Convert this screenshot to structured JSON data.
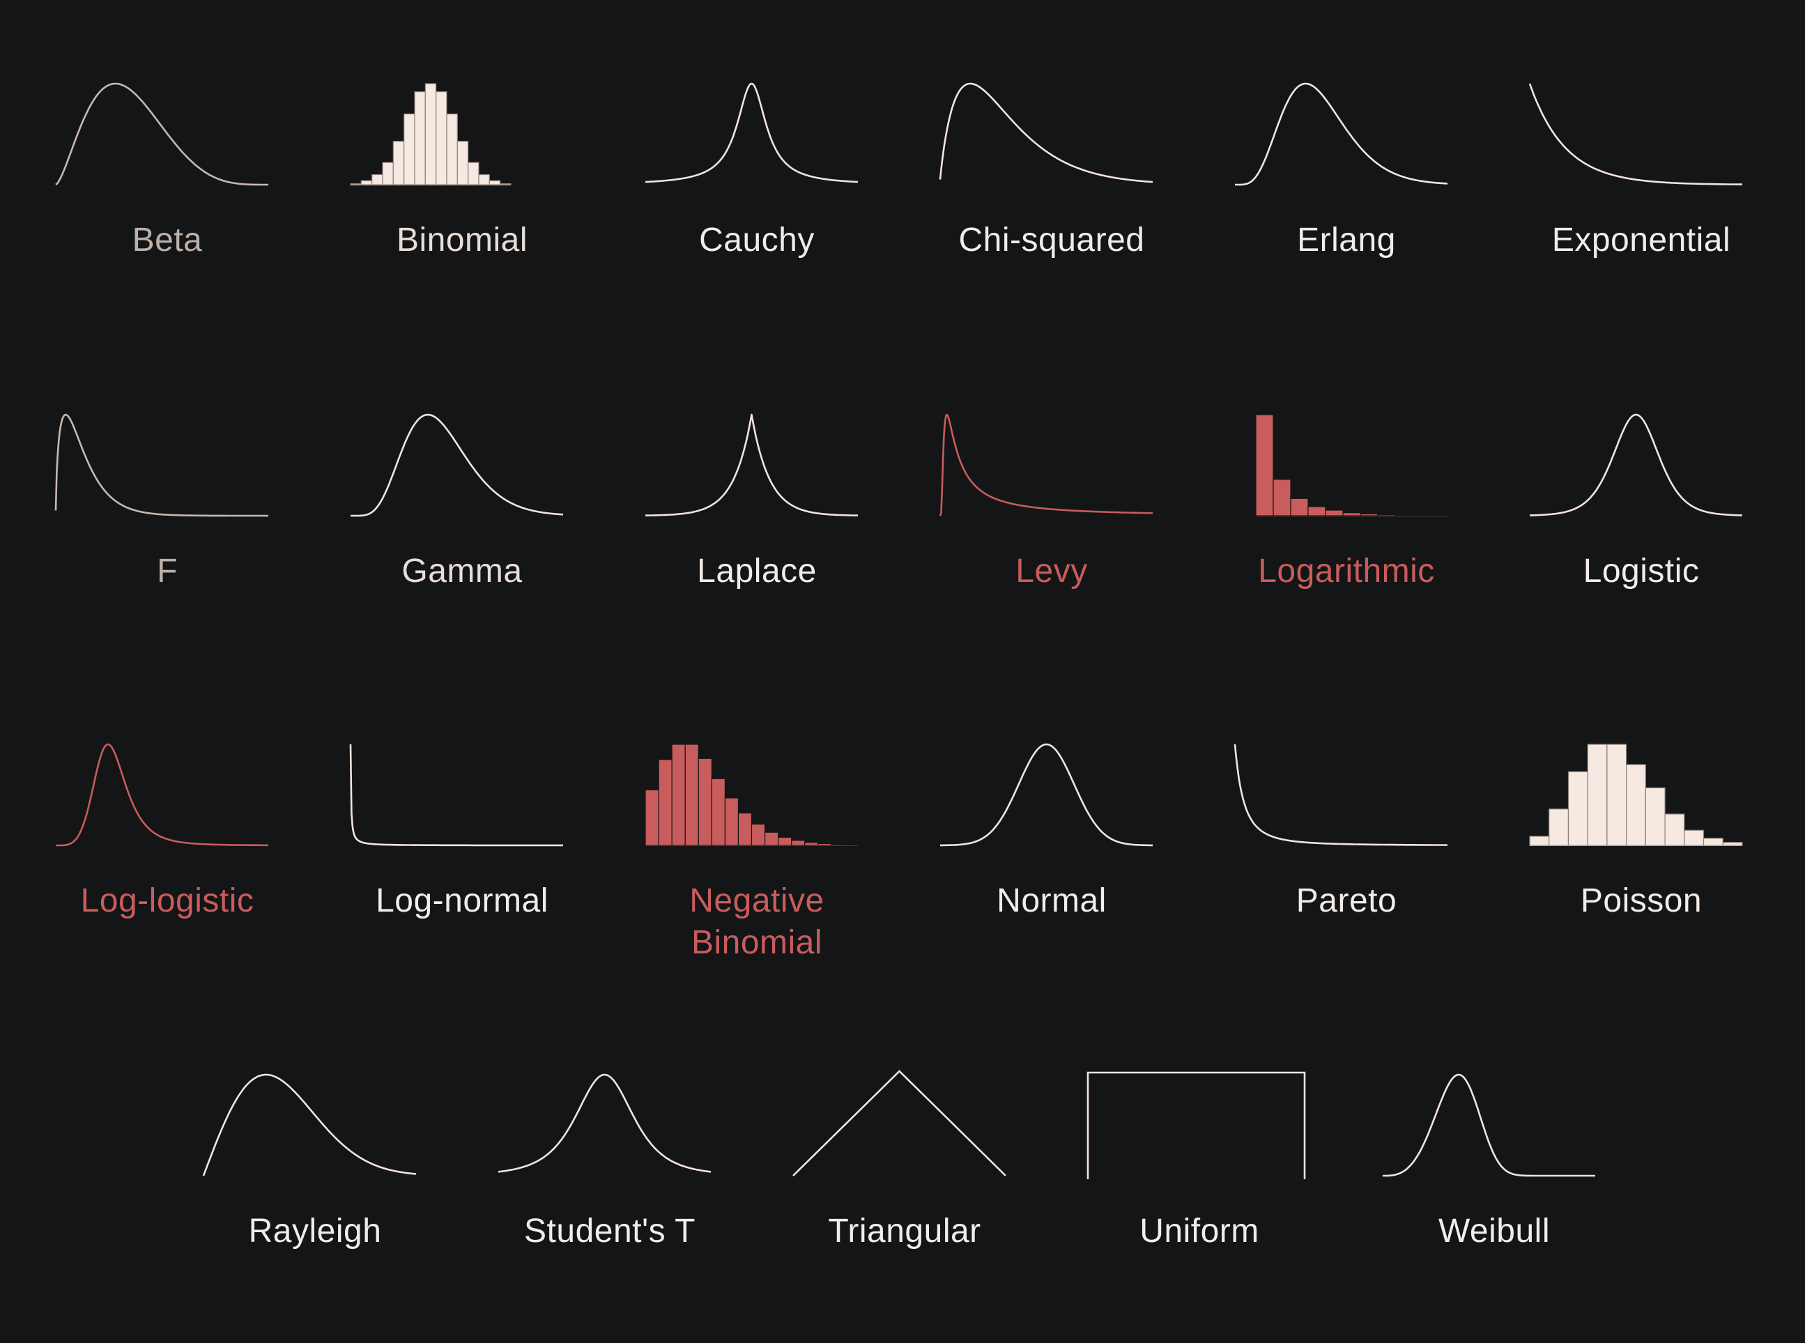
{
  "palette": {
    "background": "#141517",
    "curve_light": "#f3e4dc",
    "curve_muted": "#d4c3b8",
    "highlight": "#c95c5c",
    "bar_light": "#f6e9e2",
    "bar_edge": "#9a8a84"
  },
  "distributions": [
    {
      "id": "beta",
      "name": "Beta",
      "kind": "curve",
      "shape": "beta",
      "color": "#c8b8ae",
      "text_color": "#bdb0a8"
    },
    {
      "id": "binomial",
      "name": "Binomial",
      "kind": "histogram",
      "shape": "binomial",
      "color": "#f6e9e2",
      "text_color": "#e8ddd7"
    },
    {
      "id": "cauchy",
      "name": "Cauchy",
      "kind": "curve",
      "shape": "cauchy",
      "color": "#f3e4dc",
      "text_color": "#f3ece8"
    },
    {
      "id": "chi-squared",
      "name": "Chi-squared",
      "kind": "curve",
      "shape": "chisq",
      "color": "#f3e4dc",
      "text_color": "#f3ece8"
    },
    {
      "id": "erlang",
      "name": "Erlang",
      "kind": "curve",
      "shape": "erlang",
      "color": "#f3e4dc",
      "text_color": "#f3ece8"
    },
    {
      "id": "exponential",
      "name": "Exponential",
      "kind": "curve",
      "shape": "exponential",
      "color": "#f3e4dc",
      "text_color": "#f3ece8"
    },
    {
      "id": "f",
      "name": "F",
      "kind": "curve",
      "shape": "f",
      "color": "#c8b8ae",
      "text_color": "#bdb0a8"
    },
    {
      "id": "gamma",
      "name": "Gamma",
      "kind": "curve",
      "shape": "gamma",
      "color": "#f3e4dc",
      "text_color": "#e8ddd7"
    },
    {
      "id": "laplace",
      "name": "Laplace",
      "kind": "curve",
      "shape": "laplace",
      "color": "#f3e4dc",
      "text_color": "#f3ece8"
    },
    {
      "id": "levy",
      "name": "Levy",
      "kind": "curve",
      "shape": "levy",
      "color": "#c95c5c",
      "text_color": "#c95c5c"
    },
    {
      "id": "logarithmic",
      "name": "Logarithmic",
      "kind": "histogram",
      "shape": "logarithmic",
      "color": "#c95c5c",
      "text_color": "#c95c5c"
    },
    {
      "id": "logistic",
      "name": "Logistic",
      "kind": "curve",
      "shape": "logistic",
      "color": "#f3e4dc",
      "text_color": "#f3ece8"
    },
    {
      "id": "log-logistic",
      "name": "Log-logistic",
      "kind": "curve",
      "shape": "loglogistic",
      "color": "#c95c5c",
      "text_color": "#c95c5c"
    },
    {
      "id": "log-normal",
      "name": "Log-normal",
      "kind": "curve",
      "shape": "lognormal",
      "color": "#f3e4dc",
      "text_color": "#f3ece8"
    },
    {
      "id": "negative-binomial",
      "name": "Negative Binomial",
      "kind": "histogram",
      "shape": "negbinomial",
      "color": "#c95c5c",
      "text_color": "#c95c5c"
    },
    {
      "id": "normal",
      "name": "Normal",
      "kind": "curve",
      "shape": "normal",
      "color": "#f3e4dc",
      "text_color": "#f3ece8"
    },
    {
      "id": "pareto",
      "name": "Pareto",
      "kind": "curve",
      "shape": "pareto",
      "color": "#f3e4dc",
      "text_color": "#f3ece8"
    },
    {
      "id": "poisson",
      "name": "Poisson",
      "kind": "histogram",
      "shape": "poisson",
      "color": "#f6e9e2",
      "text_color": "#f3ece8"
    },
    {
      "id": "rayleigh",
      "name": "Rayleigh",
      "kind": "curve",
      "shape": "rayleigh",
      "color": "#f3e4dc",
      "text_color": "#f3ece8"
    },
    {
      "id": "students-t",
      "name": "Student's T",
      "kind": "curve",
      "shape": "studentt",
      "color": "#f3e4dc",
      "text_color": "#f3ece8"
    },
    {
      "id": "triangular",
      "name": "Triangular",
      "kind": "curve",
      "shape": "triangular",
      "color": "#f3e4dc",
      "text_color": "#f3ece8"
    },
    {
      "id": "uniform",
      "name": "Uniform",
      "kind": "curve",
      "shape": "uniform",
      "color": "#f3e4dc",
      "text_color": "#f3ece8"
    },
    {
      "id": "weibull",
      "name": "Weibull",
      "kind": "curve",
      "shape": "weibull",
      "color": "#f3e4dc",
      "text_color": "#f3ece8"
    }
  ]
}
